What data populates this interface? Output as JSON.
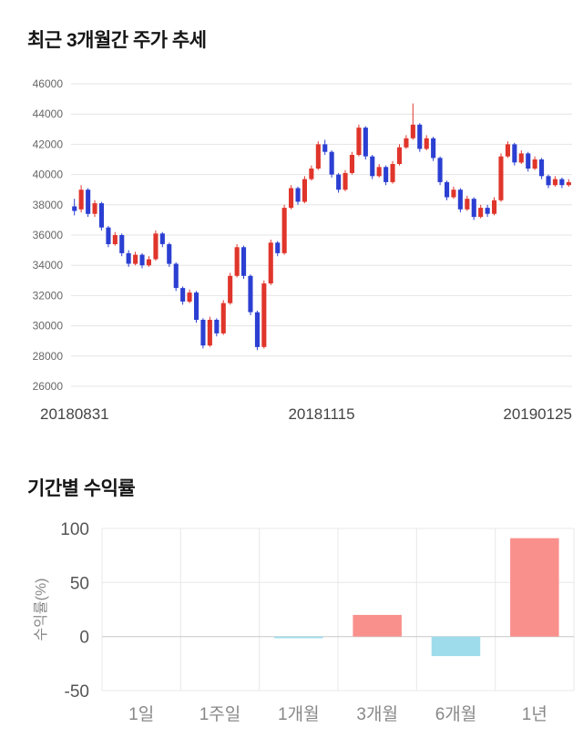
{
  "chart_data": [
    {
      "type": "candlestick",
      "title": "최근 3개월간 주가 추세",
      "xlabel": "",
      "ylabel": "",
      "x_axis_labels": [
        "20180831",
        "20181115",
        "20190125"
      ],
      "y_ticks": [
        46000,
        44000,
        42000,
        40000,
        38000,
        36000,
        34000,
        32000,
        30000,
        28000,
        26000
      ],
      "ylim": [
        26000,
        46000
      ],
      "grid": "horizontal",
      "up_color": "#e0352b",
      "down_color": "#2b3fd2",
      "grid_color": "#e4e4e4",
      "tick_label_color": "#666666",
      "x_label_color": "#444444",
      "candles_ohlc": [
        [
          37900,
          38400,
          37300,
          37600
        ],
        [
          37700,
          39300,
          37500,
          39000
        ],
        [
          39000,
          39100,
          37200,
          37400
        ],
        [
          37400,
          38300,
          37200,
          38100
        ],
        [
          38100,
          38200,
          36300,
          36500
        ],
        [
          36500,
          36600,
          35200,
          35400
        ],
        [
          35400,
          36200,
          35300,
          36000
        ],
        [
          36000,
          36100,
          34600,
          34800
        ],
        [
          34800,
          35000,
          33900,
          34100
        ],
        [
          34100,
          34900,
          34000,
          34700
        ],
        [
          34700,
          34800,
          33800,
          34000
        ],
        [
          34000,
          34600,
          33900,
          34400
        ],
        [
          34400,
          36300,
          34300,
          36100
        ],
        [
          36100,
          36200,
          35200,
          35400
        ],
        [
          35400,
          35500,
          33900,
          34100
        ],
        [
          34100,
          34200,
          32300,
          32500
        ],
        [
          32500,
          32600,
          31400,
          31600
        ],
        [
          31600,
          32400,
          31500,
          32200
        ],
        [
          32200,
          32300,
          30200,
          30400
        ],
        [
          30400,
          30500,
          28500,
          28700
        ],
        [
          28700,
          30600,
          28600,
          30400
        ],
        [
          30400,
          30500,
          29300,
          29500
        ],
        [
          29500,
          31700,
          29400,
          31500
        ],
        [
          31500,
          33500,
          31400,
          33300
        ],
        [
          33300,
          35400,
          33200,
          35200
        ],
        [
          35200,
          35300,
          33100,
          33300
        ],
        [
          33300,
          33400,
          30700,
          30900
        ],
        [
          30900,
          31000,
          28400,
          28600
        ],
        [
          28600,
          33000,
          28500,
          32800
        ],
        [
          32800,
          35700,
          32700,
          35500
        ],
        [
          35500,
          35600,
          34600,
          34800
        ],
        [
          34800,
          38000,
          34700,
          37800
        ],
        [
          37800,
          39300,
          37700,
          39100
        ],
        [
          39100,
          39200,
          38000,
          38200
        ],
        [
          38200,
          39900,
          38100,
          39700
        ],
        [
          39700,
          40600,
          39600,
          40400
        ],
        [
          40400,
          42200,
          40300,
          42000
        ],
        [
          42000,
          42300,
          41300,
          41500
        ],
        [
          41500,
          41600,
          39800,
          40000
        ],
        [
          40000,
          40100,
          38800,
          39000
        ],
        [
          39000,
          40300,
          38900,
          40100
        ],
        [
          40100,
          41500,
          40000,
          41300
        ],
        [
          41300,
          43300,
          41200,
          43100
        ],
        [
          43100,
          43200,
          41000,
          41200
        ],
        [
          41200,
          41300,
          39700,
          39900
        ],
        [
          39900,
          40700,
          39800,
          40500
        ],
        [
          40500,
          40600,
          39300,
          39500
        ],
        [
          39500,
          40900,
          39400,
          40700
        ],
        [
          40700,
          42000,
          40600,
          41800
        ],
        [
          41800,
          42600,
          41700,
          42400
        ],
        [
          42400,
          44700,
          42300,
          43300
        ],
        [
          43300,
          43400,
          41500,
          41700
        ],
        [
          41700,
          42600,
          41600,
          42400
        ],
        [
          42400,
          42500,
          40900,
          41100
        ],
        [
          41100,
          41200,
          39300,
          39500
        ],
        [
          39500,
          39600,
          38300,
          38500
        ],
        [
          38500,
          39200,
          38400,
          39000
        ],
        [
          39000,
          39100,
          37500,
          37700
        ],
        [
          37700,
          38600,
          37600,
          38400
        ],
        [
          38400,
          38500,
          37000,
          37200
        ],
        [
          37200,
          38000,
          37100,
          37800
        ],
        [
          37800,
          38000,
          37200,
          37400
        ],
        [
          37400,
          38500,
          37300,
          38300
        ],
        [
          38300,
          41400,
          38200,
          41200
        ],
        [
          41200,
          42200,
          41100,
          42000
        ],
        [
          42000,
          42100,
          40600,
          40800
        ],
        [
          40800,
          41600,
          40700,
          41400
        ],
        [
          41400,
          41500,
          40200,
          40400
        ],
        [
          40400,
          41200,
          40300,
          41000
        ],
        [
          41000,
          41100,
          39700,
          39900
        ],
        [
          39900,
          40000,
          39100,
          39300
        ],
        [
          39300,
          39900,
          39200,
          39700
        ],
        [
          39700,
          39800,
          39100,
          39300
        ],
        [
          39300,
          39700,
          39200,
          39500
        ]
      ]
    },
    {
      "type": "bar",
      "title": "기간별 수익률",
      "xlabel": "",
      "ylabel": "수익률(%)",
      "categories": [
        "1일",
        "1주일",
        "1개월",
        "3개월",
        "6개월",
        "1년"
      ],
      "values": [
        0,
        0,
        -1.5,
        20,
        -18,
        91
      ],
      "y_ticks": [
        100,
        50,
        0,
        -50
      ],
      "ylim": [
        -50,
        100
      ],
      "grid": "both",
      "positive_color": "#f9908b",
      "negative_color": "#9edcec",
      "grid_color": "#e8e8e8",
      "zero_line_color": "#c8c8c8",
      "tick_label_color": "#555555",
      "category_label_color": "#888888",
      "ylabel_color": "#888888"
    }
  ]
}
